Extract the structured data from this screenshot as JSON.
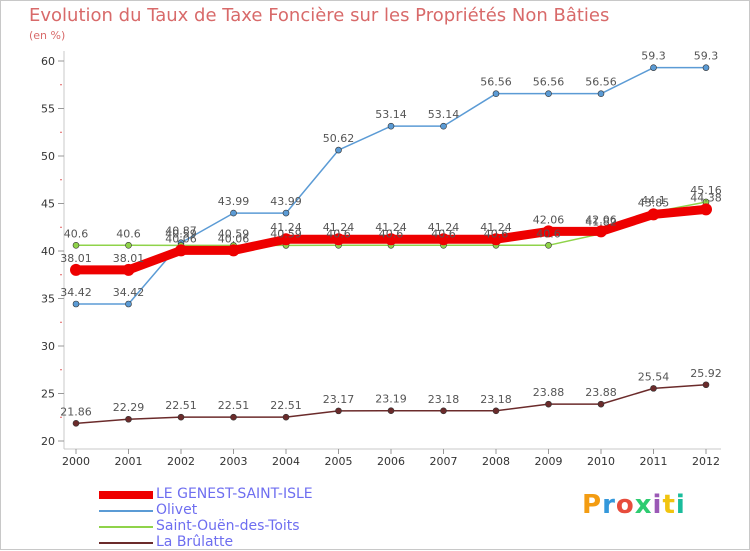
{
  "title": "Evolution du Taux de Taxe Foncière sur les Propriétés Non Bâties",
  "unit_label": "(en %)",
  "logo": "Proxiti",
  "chart_data": {
    "type": "line",
    "x": [
      "2000",
      "2001",
      "2002",
      "2003",
      "2004",
      "2005",
      "2006",
      "2007",
      "2008",
      "2009",
      "2010",
      "2011",
      "2012"
    ],
    "ylim": [
      20,
      60
    ],
    "yticks": [
      20,
      25,
      30,
      35,
      40,
      45,
      50,
      55,
      60
    ],
    "grid": false,
    "legend_position": "bottom-left",
    "series": [
      {
        "name": "LE GENEST-SAINT-ISLE",
        "color": "#ee0000",
        "values": [
          38.01,
          38.01,
          40.06,
          40.06,
          41.24,
          41.24,
          41.24,
          41.24,
          41.24,
          42.06,
          42.06,
          43.85,
          44.38
        ],
        "labels": [
          "38.01",
          "38.01",
          "40.06",
          "40.06",
          "41.24",
          "41.24",
          "41.24",
          "41.24",
          "41.24",
          "42.06",
          "42.06",
          "43.85",
          "44.38"
        ]
      },
      {
        "name": "Olivet",
        "color": "#5b9bd5",
        "values": [
          34.42,
          34.42,
          40.87,
          43.99,
          43.99,
          50.62,
          53.14,
          53.14,
          56.56,
          56.56,
          56.56,
          59.3,
          59.3
        ],
        "labels": [
          "34.42",
          "34.42",
          "40.87",
          "43.99",
          "43.99",
          "50.62",
          "53.14",
          "53.14",
          "56.56",
          "56.56",
          "56.56",
          "59.3",
          "59.3"
        ]
      },
      {
        "name": "Saint-Ouën-des-Toits",
        "color": "#8fd34a",
        "values": [
          40.6,
          40.6,
          40.59,
          40.59,
          40.59,
          40.6,
          40.6,
          40.6,
          40.6,
          40.6,
          41.82,
          44.1,
          45.16
        ],
        "labels": [
          "40.6",
          "40.6",
          "40.59",
          "40.59",
          "40.59",
          "40.6",
          "40.6",
          "40.6",
          "40.6",
          "40.6",
          "41.82",
          "44.1",
          "45.16"
        ]
      },
      {
        "name": "La Brûlatte",
        "color": "#6b2b2b",
        "values": [
          21.86,
          22.29,
          22.51,
          22.51,
          22.51,
          23.17,
          23.19,
          23.18,
          23.18,
          23.88,
          23.88,
          25.54,
          25.92
        ],
        "labels": [
          "21.86",
          "22.29",
          "22.51",
          "22.51",
          "22.51",
          "23.17",
          "23.19",
          "23.18",
          "23.18",
          "23.88",
          "23.88",
          "25.54",
          "25.92"
        ]
      }
    ]
  }
}
